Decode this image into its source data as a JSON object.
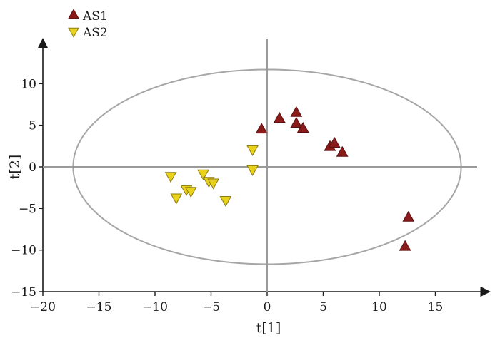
{
  "chart_data": {
    "type": "scatter",
    "xlabel": "t[1]",
    "ylabel": "t[2]",
    "xlim": [
      -20,
      20
    ],
    "ylim": [
      -15,
      15
    ],
    "xticks": [
      -20,
      -15,
      -10,
      -5,
      0,
      5,
      10,
      15
    ],
    "yticks": [
      -15,
      -10,
      -5,
      0,
      5,
      10
    ],
    "xtick_labels": [
      "−20",
      "−15",
      "−10",
      "−5",
      "0",
      "5",
      "10",
      "15"
    ],
    "ytick_labels": [
      "−15",
      "−10",
      "−5",
      "0",
      "5",
      "10"
    ],
    "legend_position": "top-left",
    "confidence_ellipse": {
      "center": [
        0,
        0
      ],
      "x_radius": 17.3,
      "y_radius": 11.7,
      "color": "#a6a6a6"
    },
    "series": [
      {
        "name": "AS1",
        "marker": "triangle-up",
        "color": "#8b1a1a",
        "points": [
          [
            -0.5,
            4.5
          ],
          [
            1.1,
            5.8
          ],
          [
            2.6,
            6.5
          ],
          [
            2.6,
            5.2
          ],
          [
            3.2,
            4.6
          ],
          [
            5.6,
            2.4
          ],
          [
            6.0,
            2.8
          ],
          [
            6.7,
            1.7
          ],
          [
            12.6,
            -6.1
          ],
          [
            12.3,
            -9.6
          ]
        ]
      },
      {
        "name": "AS2",
        "marker": "triangle-down",
        "color": "#e8d21c",
        "points": [
          [
            -8.6,
            -1.1
          ],
          [
            -8.1,
            -3.7
          ],
          [
            -7.2,
            -2.7
          ],
          [
            -6.8,
            -2.9
          ],
          [
            -5.7,
            -0.8
          ],
          [
            -5.2,
            -1.7
          ],
          [
            -4.8,
            -1.9
          ],
          [
            -3.7,
            -4.0
          ],
          [
            -1.3,
            2.1
          ],
          [
            -1.3,
            -0.3
          ]
        ]
      }
    ]
  }
}
